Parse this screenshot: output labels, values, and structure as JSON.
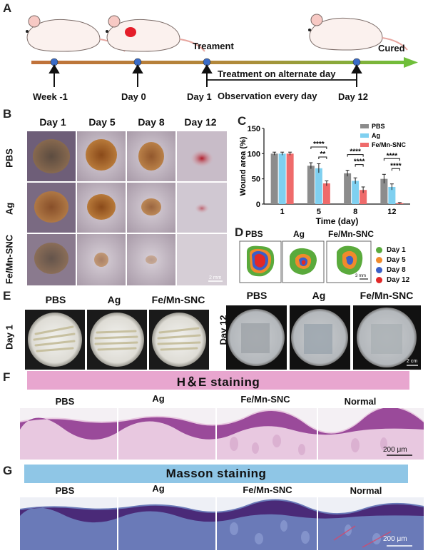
{
  "panels": {
    "A": "A",
    "B": "B",
    "C": "C",
    "D": "D",
    "E": "E",
    "F": "F",
    "G": "G"
  },
  "timeline": {
    "treament": "Treament",
    "cured": "Cured",
    "week": "Week -1",
    "day0": "Day 0",
    "day1": "Day 1",
    "day12": "Day 12",
    "alternate": "Treatment on alternate day",
    "observation": "Observation every day"
  },
  "panel_b": {
    "columns": [
      "Day 1",
      "Day 5",
      "Day 8",
      "Day 12"
    ],
    "rows": [
      "PBS",
      "Ag",
      "Fe/Mn-SNC"
    ],
    "scale": "2 mm"
  },
  "chart_data": {
    "type": "bar",
    "categories": [
      "1",
      "5",
      "8",
      "12"
    ],
    "series": [
      {
        "name": "PBS",
        "values": [
          100,
          76,
          61,
          50
        ],
        "errors": [
          3,
          6,
          6,
          9
        ],
        "color": "#8c8c8c"
      },
      {
        "name": "Ag",
        "values": [
          100,
          71,
          46,
          34
        ],
        "errors": [
          3,
          9,
          6,
          6
        ],
        "color": "#7fd0f0"
      },
      {
        "name": "Fe/Mn-SNC",
        "values": [
          100,
          41,
          28,
          2
        ],
        "errors": [
          3,
          5,
          6,
          1
        ],
        "color": "#ef6b6b"
      }
    ],
    "xlabel": "Time (day)",
    "ylabel": "Wound area (%)",
    "ylim": [
      0,
      150
    ],
    "yticks": [
      0,
      50,
      100,
      150
    ],
    "significance": [
      {
        "day": "5",
        "pair": "PBS-Fe",
        "label": "****"
      },
      {
        "day": "5",
        "pair": "Ag-Fe",
        "label": "**"
      },
      {
        "day": "8",
        "pair": "PBS-Fe",
        "label": "****"
      },
      {
        "day": "8",
        "pair": "Ag-Fe",
        "label": "****"
      },
      {
        "day": "12",
        "pair": "PBS-Fe",
        "label": "****"
      },
      {
        "day": "12",
        "pair": "Ag-Fe",
        "label": "****"
      }
    ]
  },
  "panel_d": {
    "groups": [
      "PBS",
      "Ag",
      "Fe/Mn-SNC"
    ],
    "legend": [
      {
        "label": "Day 1",
        "color": "#5aaa3c"
      },
      {
        "label": "Day 5",
        "color": "#f08a2c"
      },
      {
        "label": "Day 8",
        "color": "#3a5fc8"
      },
      {
        "label": "Day 12",
        "color": "#e02828"
      }
    ],
    "scale": "3 mm"
  },
  "panel_e": {
    "left_groups": [
      "PBS",
      "Ag",
      "Fe/Mn-SNC"
    ],
    "right_groups": [
      "PBS",
      "Ag",
      "Fe/Mn-SNC"
    ],
    "left_row": "Day 1",
    "right_row": "Day 12",
    "scale": "2 cm"
  },
  "panel_f": {
    "title": "H＆E staining",
    "groups": [
      "PBS",
      "Ag",
      "Fe/Mn-SNC",
      "Normal"
    ],
    "scale": "200 μm",
    "banner_color": "#e8a6cf"
  },
  "panel_g": {
    "title": "Masson staining",
    "groups": [
      "PBS",
      "Ag",
      "Fe/Mn-SNC",
      "Normal"
    ],
    "scale": "200 μm",
    "banner_color": "#8fc6e6"
  }
}
